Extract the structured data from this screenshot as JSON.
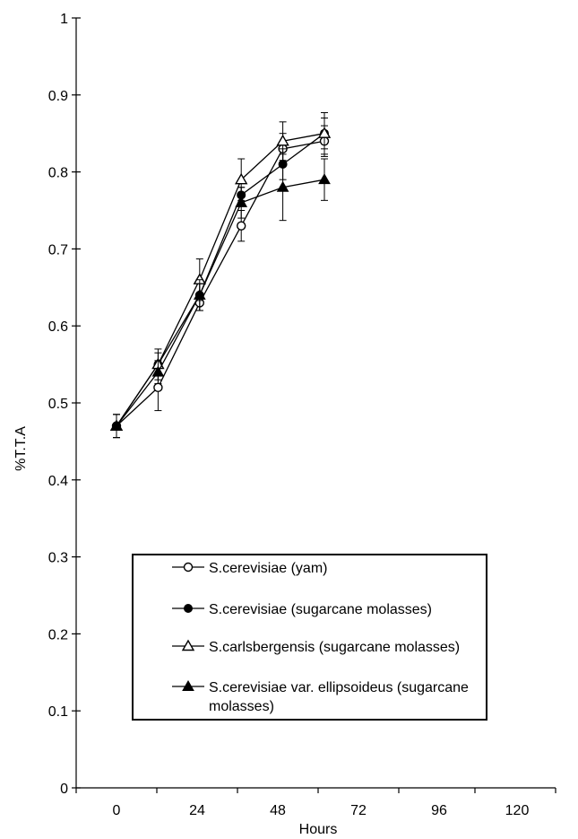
{
  "chart_data": {
    "type": "line",
    "title": "",
    "xlabel": "Hours",
    "ylabel": "%T.T.A",
    "x": [
      0,
      24,
      48,
      72,
      96,
      120
    ],
    "x_ticks": [
      "0",
      "24",
      "48",
      "72",
      "96",
      "120"
    ],
    "ylim": [
      0,
      1
    ],
    "y_ticks": [
      "0",
      "0.1",
      "0.2",
      "0.3",
      "0.4",
      "0.5",
      "0.6",
      "0.7",
      "0.8",
      "0.9",
      "1"
    ],
    "grid": false,
    "legend_position": "inside-bottom",
    "series": [
      {
        "name": "S.cerevisiae (yam)",
        "marker": "circle-open",
        "values": [
          0.47,
          0.52,
          0.63,
          0.73,
          0.83,
          0.84
        ],
        "errors": [
          0.015,
          0.03,
          0.01,
          0.02,
          0.02,
          0.02
        ]
      },
      {
        "name": "S.cerevisiae (sugarcane molasses)",
        "marker": "circle-filled",
        "values": [
          0.47,
          0.55,
          0.64,
          0.77,
          0.81,
          0.85
        ],
        "errors": [
          0.015,
          0.015,
          0.02,
          0.01,
          0.02,
          0.02
        ]
      },
      {
        "name": "S.carlsbergensis (sugarcane molasses)",
        "marker": "triangle-open",
        "values": [
          0.47,
          0.55,
          0.66,
          0.79,
          0.84,
          0.85
        ],
        "errors": [
          0.015,
          0.02,
          0.027,
          0.027,
          0.025,
          0.027
        ]
      },
      {
        "name": "S.cerevisiae var. ellipsoideus (sugarcane molasses)",
        "marker": "triangle-filled",
        "values": [
          0.47,
          0.54,
          0.64,
          0.76,
          0.78,
          0.79
        ],
        "errors": [
          0.015,
          0.015,
          0.02,
          0.02,
          0.043,
          0.027
        ]
      }
    ]
  }
}
